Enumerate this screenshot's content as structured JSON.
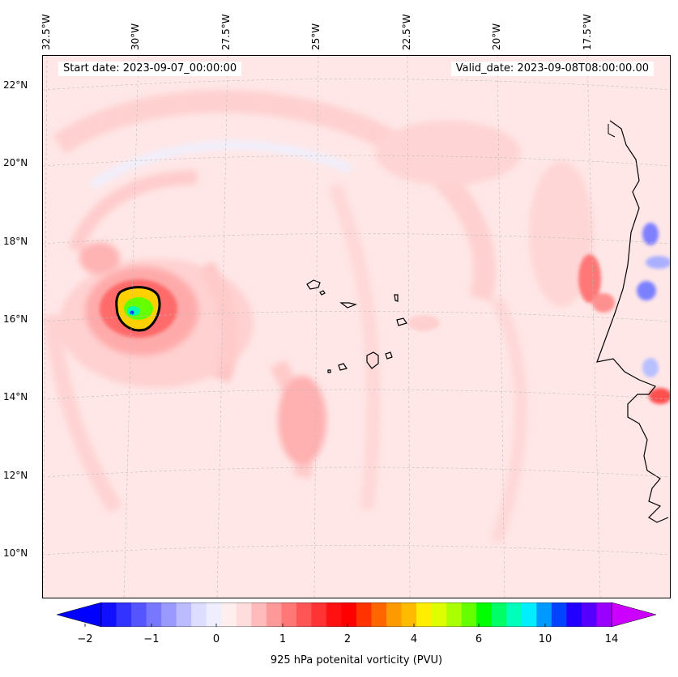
{
  "header": {
    "start_date": "Start date: 2023-09-07_00:00:00",
    "valid_date": "Valid_date: 2023-09-08T08:00:00.00"
  },
  "axes": {
    "lon_labels": [
      "32.5°W",
      "30°W",
      "27.5°W",
      "25°W",
      "22.5°W",
      "20°W",
      "17.5°W"
    ],
    "lat_labels": [
      "22°N",
      "20°N",
      "18°N",
      "16°N",
      "14°N",
      "12°N",
      "10°N"
    ]
  },
  "colorbar": {
    "label": "925 hPa potenital vorticity (PVU)",
    "ticks": [
      "−2",
      "−1",
      "0",
      "1",
      "2",
      "4",
      "6",
      "10",
      "14"
    ],
    "colors": [
      "#1010ff",
      "#3333ff",
      "#5555ff",
      "#7777ff",
      "#9999ff",
      "#bbbbff",
      "#ddddff",
      "#eeeeff",
      "#ffeeee",
      "#ffdddd",
      "#ffbbbb",
      "#ff9999",
      "#ff7777",
      "#ff5555",
      "#ff3333",
      "#ff1111",
      "#ff0000",
      "#ff3300",
      "#ff6600",
      "#ff9900",
      "#ffbb00",
      "#ffee00",
      "#ddff00",
      "#aaff00",
      "#66ff00",
      "#00ff00",
      "#00ff66",
      "#00ffbb",
      "#00eeff",
      "#0099ff",
      "#0044ff",
      "#2200ff",
      "#5500ff",
      "#9900ff"
    ],
    "under_color": "#0000ff",
    "over_color": "#cc00ff"
  }
}
